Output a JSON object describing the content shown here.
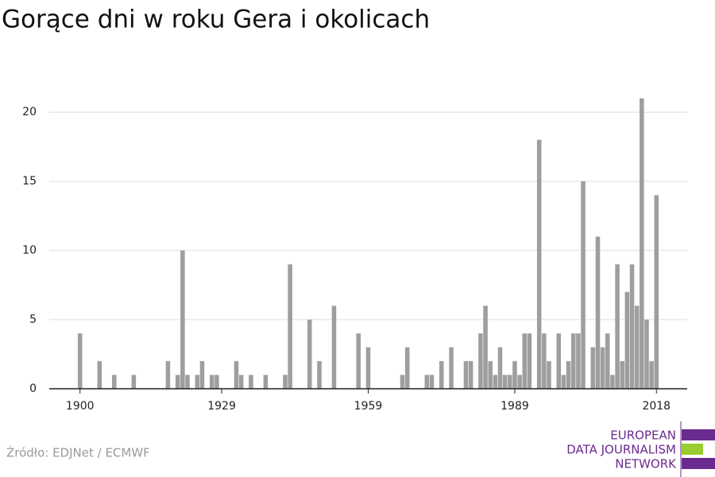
{
  "chart_data": {
    "type": "bar",
    "title": "Gorące dni w roku Gera i okolicach",
    "x": [
      1900,
      1904,
      1907,
      1911,
      1918,
      1920,
      1921,
      1922,
      1924,
      1925,
      1927,
      1928,
      1932,
      1933,
      1935,
      1938,
      1942,
      1943,
      1947,
      1949,
      1952,
      1957,
      1959,
      1966,
      1967,
      1971,
      1972,
      1974,
      1976,
      1979,
      1980,
      1982,
      1983,
      1984,
      1985,
      1986,
      1987,
      1988,
      1989,
      1990,
      1991,
      1992,
      1994,
      1995,
      1996,
      1998,
      1999,
      2000,
      2001,
      2002,
      2003,
      2005,
      2006,
      2007,
      2008,
      2009,
      2010,
      2011,
      2012,
      2013,
      2014,
      2015,
      2016,
      2017,
      2018
    ],
    "values": [
      4,
      2,
      1,
      1,
      2,
      1,
      10,
      1,
      1,
      2,
      1,
      1,
      2,
      1,
      1,
      1,
      1,
      9,
      5,
      2,
      6,
      4,
      3,
      1,
      3,
      1,
      1,
      2,
      3,
      2,
      2,
      4,
      6,
      2,
      1,
      3,
      1,
      1,
      2,
      1,
      4,
      4,
      18,
      4,
      2,
      4,
      1,
      2,
      4,
      4,
      15,
      3,
      11,
      3,
      4,
      1,
      9,
      2,
      7,
      9,
      6,
      21,
      5,
      2,
      14
    ],
    "color": "#9e9e9e",
    "xlim": [
      1893.7,
      2024.3
    ],
    "xticks": [
      1900,
      1929,
      1959,
      1989,
      2018
    ],
    "ylim": [
      0,
      21.5
    ],
    "yticks": [
      0,
      5,
      10,
      15,
      20
    ],
    "grid": true,
    "source": "Źródło: EDJNet / ECMWF",
    "logo": [
      "EUROPEAN",
      "DATA JOURNALISM",
      "NETWORK"
    ]
  }
}
